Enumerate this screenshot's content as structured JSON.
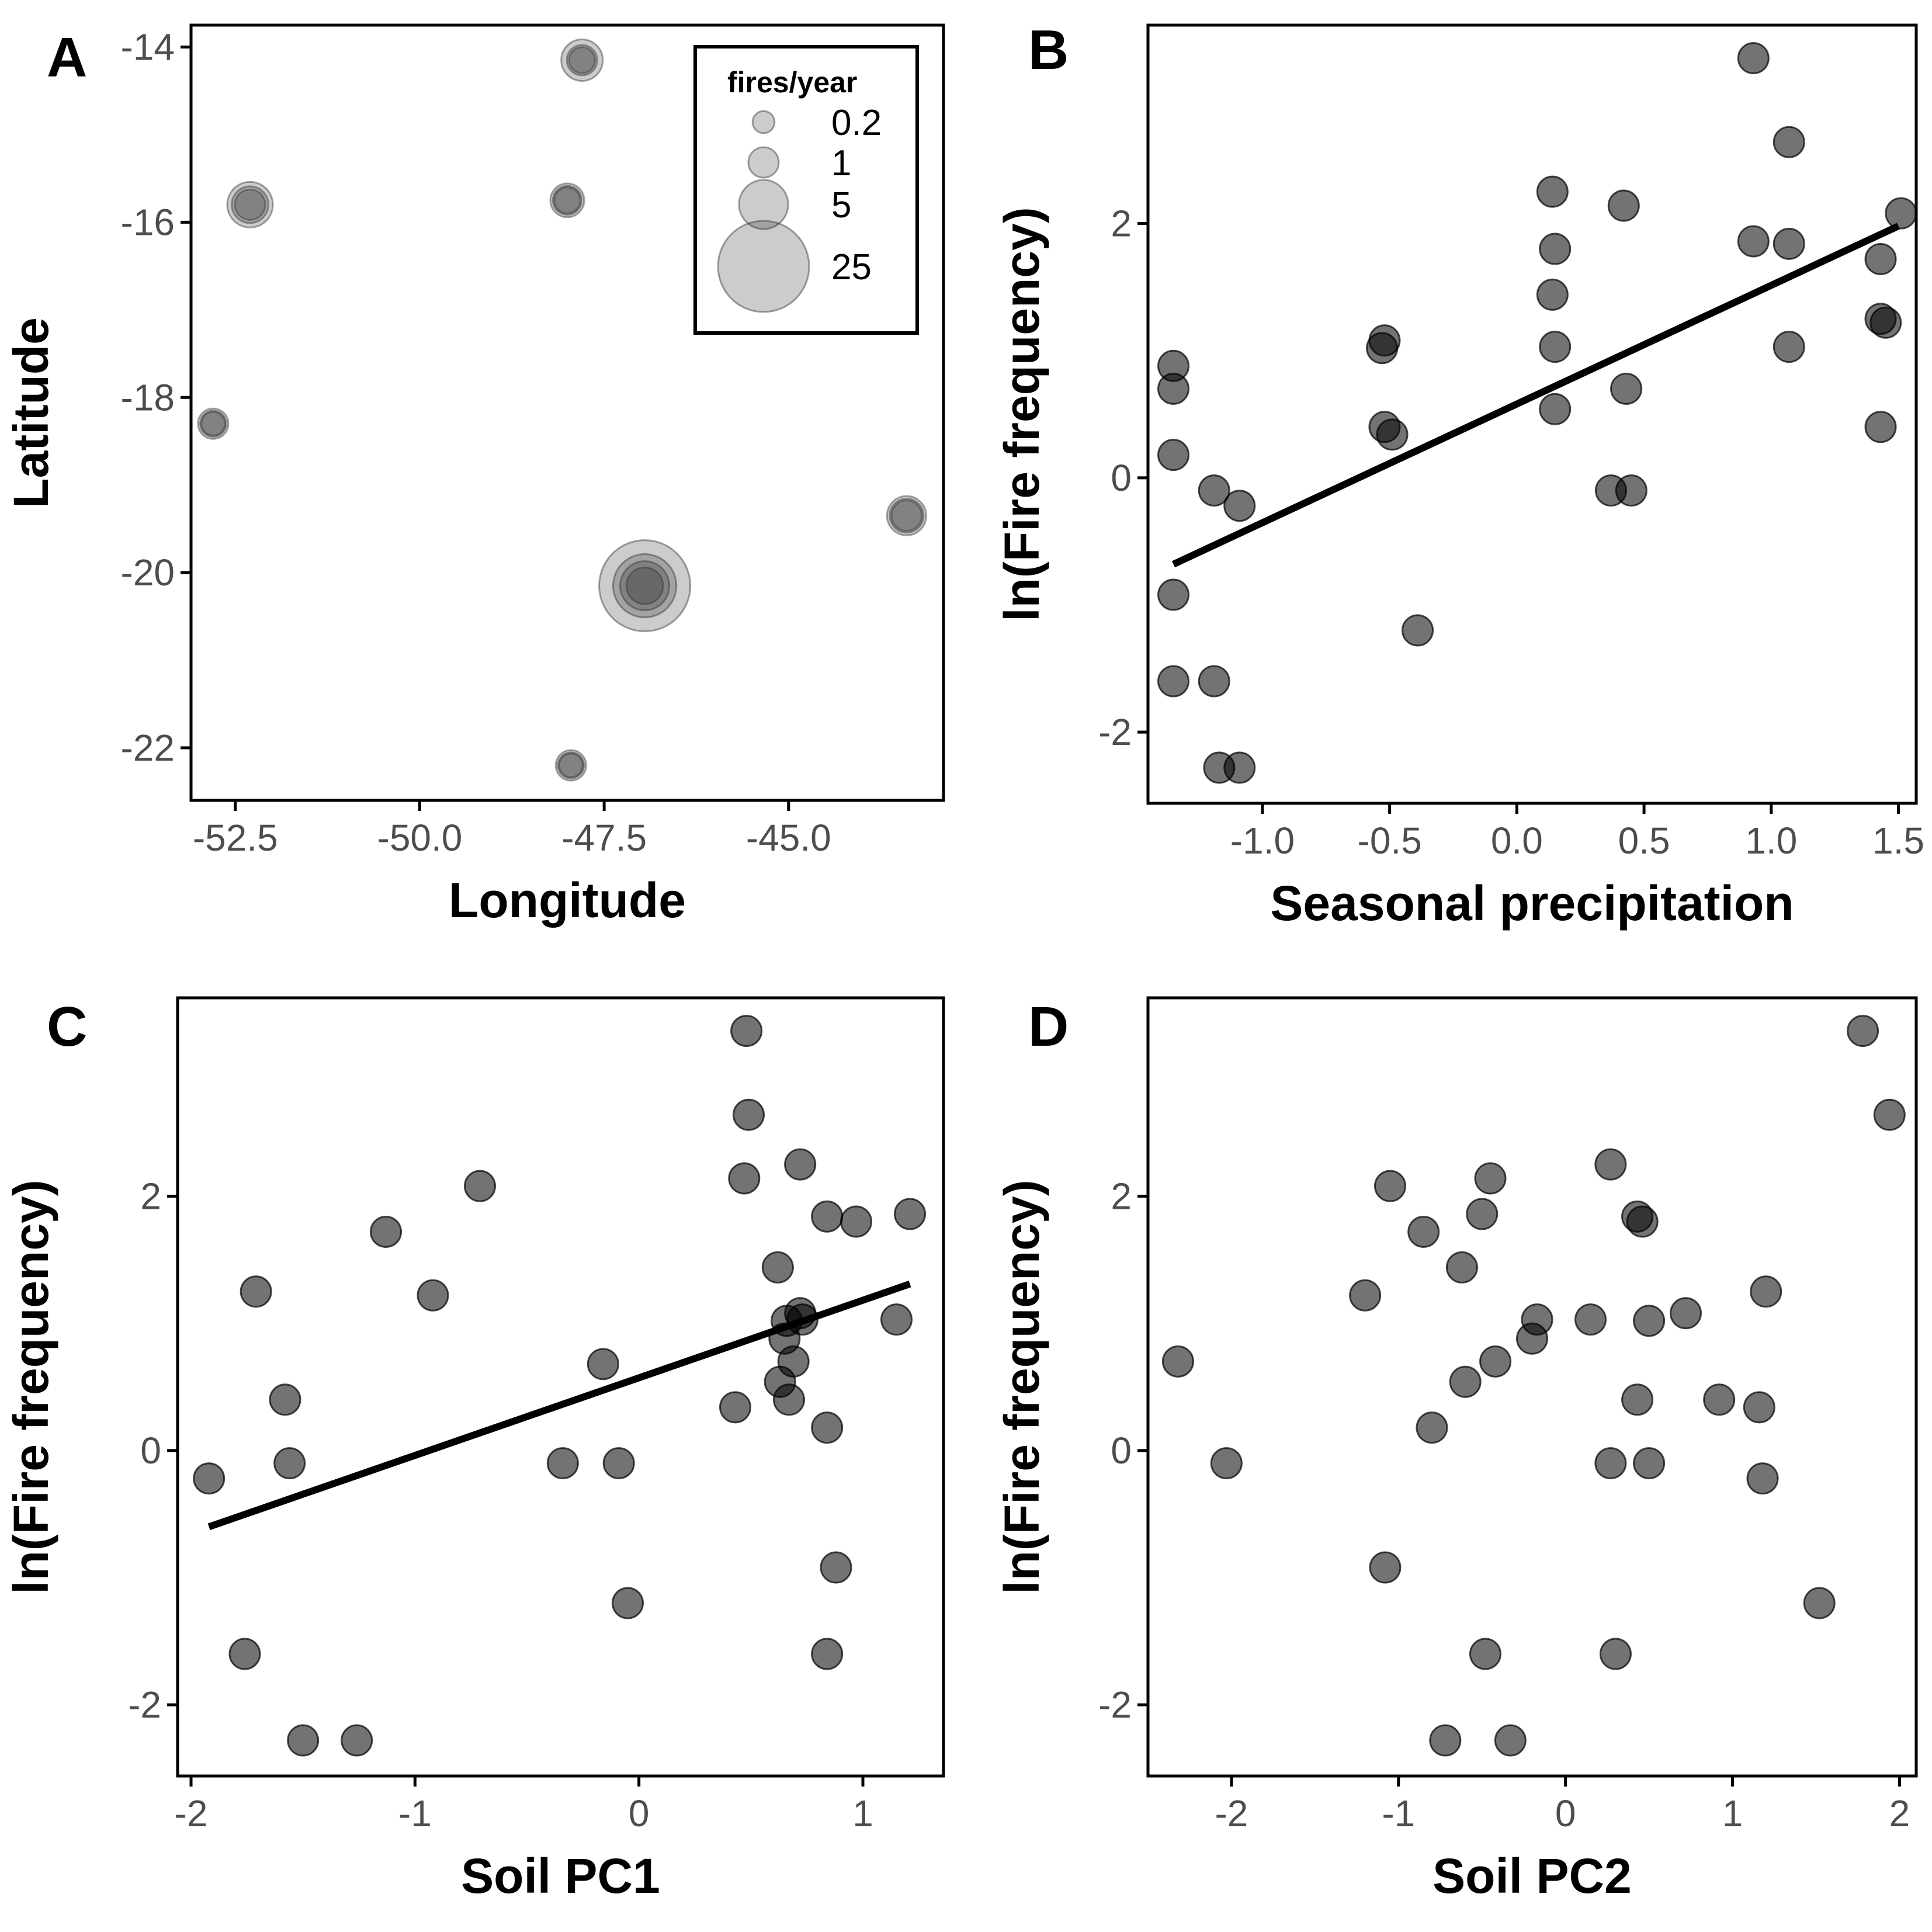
{
  "chart_data": [
    {
      "panel": "A",
      "type": "scatter",
      "xlabel": "Longitude",
      "ylabel": "Latitude",
      "xlim": [
        -53.1,
        -42.9
      ],
      "ylim": [
        -22.6,
        -13.75
      ],
      "xticks": [
        -52.5,
        -50.0,
        -47.5,
        -45.0
      ],
      "xtick_labels": [
        "-52.5",
        "-50.0",
        "-47.5",
        "-45.0"
      ],
      "yticks": [
        -22,
        -20,
        -18,
        -16,
        -14
      ],
      "ytick_labels": [
        "-22",
        "-20",
        "-18",
        "-16",
        "-14"
      ],
      "size_legend": {
        "title": "fires/year",
        "entries": [
          {
            "label": "0.2",
            "value": 0.2
          },
          {
            "label": "1",
            "value": 1
          },
          {
            "label": "5",
            "value": 5
          },
          {
            "label": "25",
            "value": 25
          }
        ]
      },
      "points": [
        {
          "x": -47.8,
          "y": -14.15,
          "size": 3
        },
        {
          "x": -47.8,
          "y": -14.15,
          "size": 1
        },
        {
          "x": -47.8,
          "y": -14.15,
          "size": 0.5
        },
        {
          "x": -52.3,
          "y": -15.8,
          "size": 4
        },
        {
          "x": -52.3,
          "y": -15.8,
          "size": 2
        },
        {
          "x": -52.3,
          "y": -15.8,
          "size": 1
        },
        {
          "x": -48.0,
          "y": -15.75,
          "size": 1.5
        },
        {
          "x": -48.0,
          "y": -15.75,
          "size": 0.8
        },
        {
          "x": -48.0,
          "y": -15.75,
          "size": 0.5
        },
        {
          "x": -52.8,
          "y": -18.3,
          "size": 1
        },
        {
          "x": -52.8,
          "y": -18.3,
          "size": 0.5
        },
        {
          "x": -52.8,
          "y": -18.3,
          "size": 0.3
        },
        {
          "x": -43.4,
          "y": -19.35,
          "size": 2.5
        },
        {
          "x": -43.4,
          "y": -19.35,
          "size": 1.5
        },
        {
          "x": -43.4,
          "y": -19.35,
          "size": 1
        },
        {
          "x": -46.95,
          "y": -20.15,
          "size": 25
        },
        {
          "x": -46.95,
          "y": -20.15,
          "size": 10
        },
        {
          "x": -46.95,
          "y": -20.15,
          "size": 5
        },
        {
          "x": -46.95,
          "y": -20.15,
          "size": 2
        },
        {
          "x": -47.95,
          "y": -22.2,
          "size": 1
        },
        {
          "x": -47.95,
          "y": -22.2,
          "size": 0.5
        },
        {
          "x": -47.95,
          "y": -22.2,
          "size": 0.3
        }
      ]
    },
    {
      "panel": "B",
      "type": "scatter",
      "xlabel": "Seasonal precipitation",
      "ylabel": "ln(Fire frequency)",
      "xlim": [
        -1.45,
        1.57
      ],
      "ylim": [
        -2.56,
        3.56
      ],
      "xticks": [
        -1.0,
        -0.5,
        0.0,
        0.5,
        1.0,
        1.5
      ],
      "xtick_labels": [
        "-1.0",
        "-0.5",
        "0.0",
        "0.5",
        "1.0",
        "1.5"
      ],
      "yticks": [
        -2,
        0,
        2
      ],
      "ytick_labels": [
        "-2",
        "0",
        "2"
      ],
      "trend_line": {
        "x": [
          -1.35,
          1.5
        ],
        "y": [
          -0.68,
          1.98
        ]
      },
      "points": [
        {
          "x": -1.35,
          "y": 0.88
        },
        {
          "x": -1.35,
          "y": 0.7
        },
        {
          "x": -1.35,
          "y": 0.18
        },
        {
          "x": -1.35,
          "y": -0.92
        },
        {
          "x": -1.35,
          "y": -1.6
        },
        {
          "x": -1.19,
          "y": -0.1
        },
        {
          "x": -1.09,
          "y": -0.22
        },
        {
          "x": -1.19,
          "y": -1.6
        },
        {
          "x": -1.17,
          "y": -2.28
        },
        {
          "x": -1.09,
          "y": -2.28
        },
        {
          "x": -0.52,
          "y": 1.08
        },
        {
          "x": -0.53,
          "y": 1.02
        },
        {
          "x": -0.52,
          "y": 0.4
        },
        {
          "x": -0.49,
          "y": 0.34
        },
        {
          "x": -0.39,
          "y": -1.2
        },
        {
          "x": 0.14,
          "y": 2.25
        },
        {
          "x": 0.15,
          "y": 1.8
        },
        {
          "x": 0.14,
          "y": 1.44
        },
        {
          "x": 0.15,
          "y": 1.03
        },
        {
          "x": 0.15,
          "y": 0.54
        },
        {
          "x": 0.42,
          "y": 2.14
        },
        {
          "x": 0.43,
          "y": 0.7
        },
        {
          "x": 0.37,
          "y": -0.1
        },
        {
          "x": 0.45,
          "y": -0.1
        },
        {
          "x": 0.93,
          "y": 3.3
        },
        {
          "x": 0.93,
          "y": 1.86
        },
        {
          "x": 1.07,
          "y": 2.64
        },
        {
          "x": 1.07,
          "y": 1.84
        },
        {
          "x": 1.07,
          "y": 1.03
        },
        {
          "x": 1.43,
          "y": 1.72
        },
        {
          "x": 1.43,
          "y": 1.25
        },
        {
          "x": 1.45,
          "y": 1.22
        },
        {
          "x": 1.43,
          "y": 0.4
        },
        {
          "x": 1.51,
          "y": 2.08
        }
      ]
    },
    {
      "panel": "C",
      "type": "scatter",
      "xlabel": "Soil PC1",
      "ylabel": "ln(Fire frequency)",
      "xlim": [
        -2.06,
        1.36
      ],
      "ylim": [
        -2.56,
        3.56
      ],
      "xticks": [
        -2,
        -1,
        0,
        1
      ],
      "xtick_labels": [
        "-2",
        "-1",
        "0",
        "1"
      ],
      "yticks": [
        -2,
        0,
        2
      ],
      "ytick_labels": [
        "-2",
        "0",
        "2"
      ],
      "trend_line": {
        "x": [
          -1.92,
          1.21
        ],
        "y": [
          -0.6,
          1.31
        ]
      },
      "points": [
        {
          "x": -1.92,
          "y": -0.22
        },
        {
          "x": -1.76,
          "y": -1.6
        },
        {
          "x": -1.71,
          "y": 1.25
        },
        {
          "x": -1.58,
          "y": 0.4
        },
        {
          "x": -1.56,
          "y": -0.1
        },
        {
          "x": -1.5,
          "y": -2.28
        },
        {
          "x": -1.26,
          "y": -2.28
        },
        {
          "x": -1.13,
          "y": 1.72
        },
        {
          "x": -0.92,
          "y": 1.22
        },
        {
          "x": -0.71,
          "y": 2.08
        },
        {
          "x": -0.34,
          "y": -0.1
        },
        {
          "x": -0.16,
          "y": 0.68
        },
        {
          "x": -0.09,
          "y": -0.1
        },
        {
          "x": -0.05,
          "y": -1.2
        },
        {
          "x": 0.43,
          "y": 0.34
        },
        {
          "x": 0.47,
          "y": 2.14
        },
        {
          "x": 0.48,
          "y": 3.3
        },
        {
          "x": 0.49,
          "y": 2.64
        },
        {
          "x": 0.62,
          "y": 1.44
        },
        {
          "x": 0.63,
          "y": 0.54
        },
        {
          "x": 0.65,
          "y": 0.88
        },
        {
          "x": 0.66,
          "y": 1.02
        },
        {
          "x": 0.67,
          "y": 0.4
        },
        {
          "x": 0.69,
          "y": 0.7
        },
        {
          "x": 0.72,
          "y": 1.08
        },
        {
          "x": 0.73,
          "y": 1.03
        },
        {
          "x": 0.72,
          "y": 2.25
        },
        {
          "x": 0.84,
          "y": 1.84
        },
        {
          "x": 0.84,
          "y": 0.18
        },
        {
          "x": 0.84,
          "y": -1.6
        },
        {
          "x": 0.88,
          "y": -0.92
        },
        {
          "x": 0.97,
          "y": 1.8
        },
        {
          "x": 1.15,
          "y": 1.03
        },
        {
          "x": 1.21,
          "y": 1.86
        }
      ]
    },
    {
      "panel": "D",
      "type": "scatter",
      "xlabel": "Soil PC2",
      "ylabel": "ln(Fire frequency)",
      "xlim": [
        -2.5,
        2.1
      ],
      "ylim": [
        -2.56,
        3.56
      ],
      "xticks": [
        -2,
        -1,
        0,
        1,
        2
      ],
      "xtick_labels": [
        "-2",
        "-1",
        "0",
        "1",
        "2"
      ],
      "yticks": [
        -2,
        0,
        2
      ],
      "ytick_labels": [
        "-2",
        "0",
        "2"
      ],
      "points": [
        {
          "x": -2.32,
          "y": 0.7
        },
        {
          "x": -2.03,
          "y": -0.1
        },
        {
          "x": -1.2,
          "y": 1.22
        },
        {
          "x": -1.08,
          "y": -0.92
        },
        {
          "x": -1.05,
          "y": 2.08
        },
        {
          "x": -0.85,
          "y": 1.72
        },
        {
          "x": -0.8,
          "y": 0.18
        },
        {
          "x": -0.72,
          "y": -2.28
        },
        {
          "x": -0.62,
          "y": 1.44
        },
        {
          "x": -0.6,
          "y": 0.54
        },
        {
          "x": -0.5,
          "y": 1.86
        },
        {
          "x": -0.48,
          "y": -1.6
        },
        {
          "x": -0.45,
          "y": 2.14
        },
        {
          "x": -0.42,
          "y": 0.7
        },
        {
          "x": -0.33,
          "y": -2.28
        },
        {
          "x": -0.2,
          "y": 0.88
        },
        {
          "x": -0.17,
          "y": 1.03
        },
        {
          "x": 0.15,
          "y": 1.03
        },
        {
          "x": 0.27,
          "y": 2.25
        },
        {
          "x": 0.27,
          "y": -0.1
        },
        {
          "x": 0.3,
          "y": -1.6
        },
        {
          "x": 0.43,
          "y": 1.84
        },
        {
          "x": 0.46,
          "y": 1.8
        },
        {
          "x": 0.43,
          "y": 0.4
        },
        {
          "x": 0.5,
          "y": 1.02
        },
        {
          "x": 0.5,
          "y": -0.1
        },
        {
          "x": 0.72,
          "y": 1.08
        },
        {
          "x": 0.92,
          "y": 0.4
        },
        {
          "x": 1.16,
          "y": 0.34
        },
        {
          "x": 1.18,
          "y": -0.22
        },
        {
          "x": 1.2,
          "y": 1.25
        },
        {
          "x": 1.52,
          "y": -1.2
        },
        {
          "x": 1.78,
          "y": 3.3
        },
        {
          "x": 1.94,
          "y": 2.64
        }
      ]
    }
  ],
  "colors": {
    "point_fill": "#000000",
    "point_opacity": 0.55,
    "size_point_fill": "#000000",
    "size_point_opacity": 0.2,
    "size_point_stroke": "#333333",
    "trend_line": "#000000",
    "frame": "#000000",
    "tick_label": "#4d4d4d"
  }
}
